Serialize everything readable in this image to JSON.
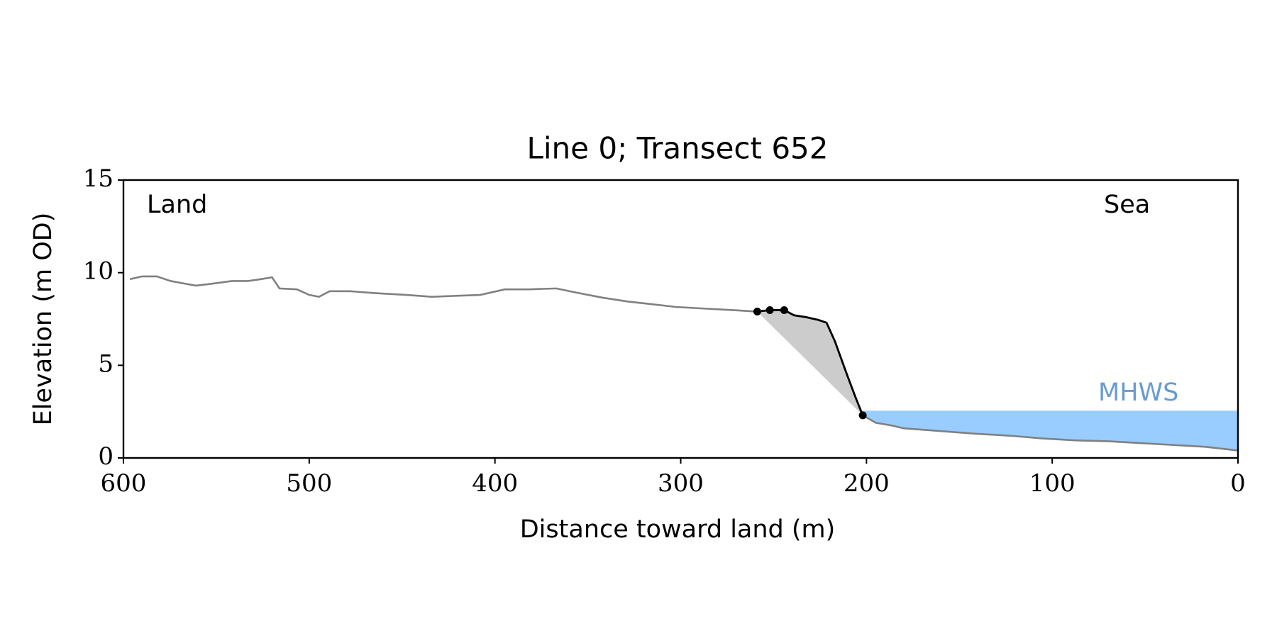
{
  "chart_data": {
    "type": "line",
    "title": "Line 0; Transect 652",
    "xlabel": "Distance toward land (m)",
    "ylabel": "Elevation (m OD)",
    "xlim": [
      600,
      0
    ],
    "ylim": [
      0,
      15
    ],
    "xticks": [
      600,
      500,
      400,
      300,
      200,
      100,
      0
    ],
    "yticks": [
      0,
      5,
      10,
      15
    ],
    "annotations": [
      "Land",
      "Sea"
    ],
    "mhws": {
      "label": "MHWS",
      "value": 2.55,
      "color": "#99ccff"
    },
    "profile": {
      "color": "#808080",
      "x": [
        596.5,
        590,
        582,
        574.6,
        561,
        552.6,
        541.7,
        533,
        526,
        520,
        516,
        506.6,
        500,
        494.7,
        489,
        478,
        465,
        447.4,
        434,
        421,
        408,
        394.7,
        381.6,
        367,
        355,
        342,
        329,
        315.8,
        302.6,
        285,
        272,
        258.8,
        252,
        244.3,
        239,
        232.5,
        225.9,
        221.5,
        217,
        210.5,
        206,
        202,
        195,
        186.4,
        180,
        166.7,
        153.5,
        140,
        122.8,
        105,
        87.7,
        70,
        52.6,
        35,
        17.5,
        0
      ],
      "values": [
        9.65,
        9.8,
        9.8,
        9.55,
        9.3,
        9.4,
        9.55,
        9.55,
        9.65,
        9.75,
        9.15,
        9.1,
        8.8,
        8.7,
        9.0,
        9.0,
        8.9,
        8.8,
        8.7,
        8.75,
        8.8,
        9.1,
        9.1,
        9.15,
        8.9,
        8.65,
        8.45,
        8.3,
        8.15,
        8.05,
        7.98,
        7.9,
        7.98,
        7.98,
        7.7,
        7.6,
        7.45,
        7.3,
        6.3,
        4.5,
        3.3,
        2.3,
        1.9,
        1.75,
        1.6,
        1.5,
        1.4,
        1.3,
        1.2,
        1.05,
        0.95,
        0.9,
        0.8,
        0.7,
        0.6,
        0.4
      ]
    },
    "cliff": {
      "color": "#000000",
      "fill": "#cccccc",
      "x": [
        258.8,
        252,
        244.3,
        239,
        232.5,
        225.9,
        221.5,
        217,
        210.5,
        206,
        202
      ],
      "values": [
        7.9,
        7.98,
        7.98,
        7.7,
        7.6,
        7.45,
        7.3,
        6.3,
        4.5,
        3.3,
        2.3
      ]
    },
    "points": {
      "color": "#000000",
      "x": [
        258.8,
        252,
        244.3,
        202
      ],
      "values": [
        7.9,
        7.98,
        7.98,
        2.3
      ]
    }
  }
}
